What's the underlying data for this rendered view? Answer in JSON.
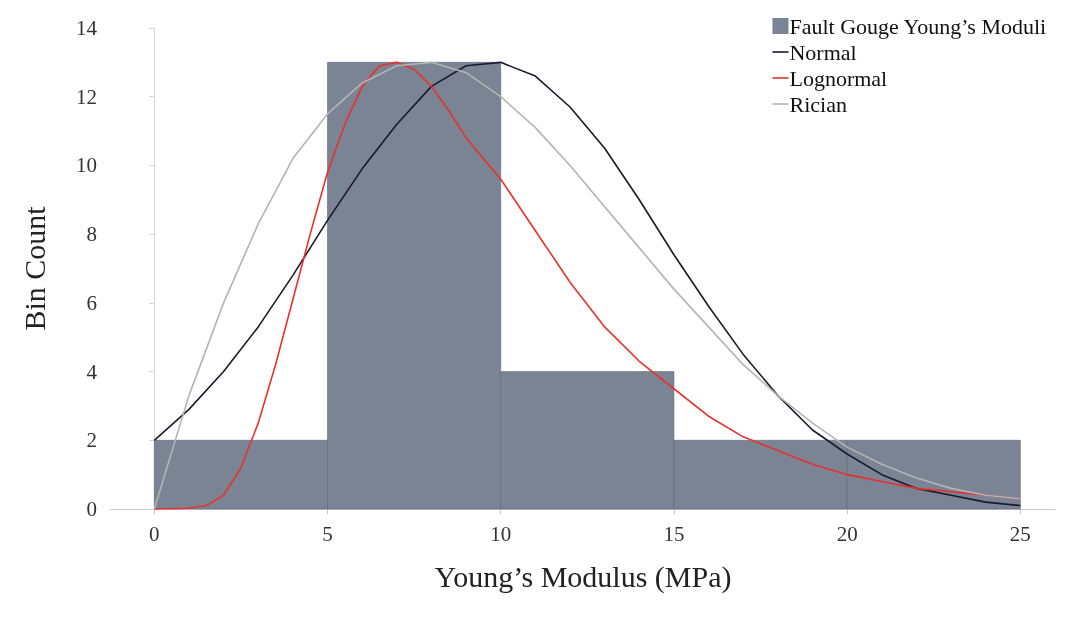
{
  "chart_data": {
    "type": "histogram",
    "xlabel": "Young’s Modulus (MPa)",
    "ylabel": "Bin Count",
    "bins": [
      0,
      5,
      10,
      15,
      20,
      25
    ],
    "xlim": [
      -1.25,
      26
    ],
    "xticks": [
      0,
      5,
      10,
      15,
      20,
      25
    ],
    "ylim": [
      0,
      14
    ],
    "yticks": [
      0,
      2,
      4,
      6,
      8,
      10,
      12,
      14
    ],
    "legend": "top right",
    "series": [
      {
        "name": "Fault Gouge Young’s Moduli",
        "color": "#7a8494",
        "values": [
          2,
          13,
          4,
          2,
          2
        ]
      },
      {
        "type": "line",
        "name": "Normal",
        "color": "#1a1a2e",
        "x": [
          0,
          1,
          2,
          3,
          4,
          5,
          6,
          7,
          8,
          9,
          10,
          11,
          12,
          13,
          14,
          15,
          16,
          17,
          18,
          19,
          20,
          21,
          22,
          23,
          24,
          25
        ],
        "values": [
          2.0,
          2.9,
          4.0,
          5.3,
          6.8,
          8.4,
          9.9,
          11.2,
          12.3,
          12.9,
          13.0,
          12.6,
          11.7,
          10.5,
          9.0,
          7.4,
          5.9,
          4.5,
          3.3,
          2.3,
          1.6,
          1.0,
          0.6,
          0.4,
          0.2,
          0.1
        ]
      },
      {
        "type": "line",
        "name": "Lognormal",
        "color": "#e8312a",
        "x": [
          0,
          1,
          1.5,
          2,
          2.5,
          3,
          3.5,
          4,
          4.5,
          5,
          5.5,
          6,
          6.5,
          7,
          7.5,
          8,
          8.5,
          9,
          10,
          11,
          12,
          13,
          14,
          15,
          16,
          17,
          18,
          19,
          20,
          21,
          22,
          23,
          24,
          25
        ],
        "values": [
          0,
          0.02,
          0.1,
          0.4,
          1.2,
          2.5,
          4.2,
          6.1,
          8.0,
          9.8,
          11.2,
          12.3,
          12.9,
          13.0,
          12.8,
          12.3,
          11.6,
          10.8,
          9.6,
          8.1,
          6.6,
          5.3,
          4.3,
          3.5,
          2.7,
          2.1,
          1.7,
          1.3,
          1.0,
          0.8,
          0.6,
          0.5,
          0.4,
          0.3
        ]
      },
      {
        "type": "line",
        "name": "Rician",
        "color": "#b4b4b4",
        "x": [
          0,
          1,
          2,
          3,
          4,
          5,
          6,
          7,
          8,
          9,
          10,
          11,
          12,
          13,
          14,
          15,
          16,
          17,
          18,
          19,
          20,
          21,
          22,
          23,
          24,
          25
        ],
        "values": [
          0,
          3.3,
          6.0,
          8.3,
          10.2,
          11.5,
          12.4,
          12.9,
          13.0,
          12.7,
          12.0,
          11.1,
          10.0,
          8.8,
          7.6,
          6.4,
          5.3,
          4.2,
          3.3,
          2.5,
          1.8,
          1.3,
          0.9,
          0.6,
          0.4,
          0.3
        ]
      }
    ]
  }
}
